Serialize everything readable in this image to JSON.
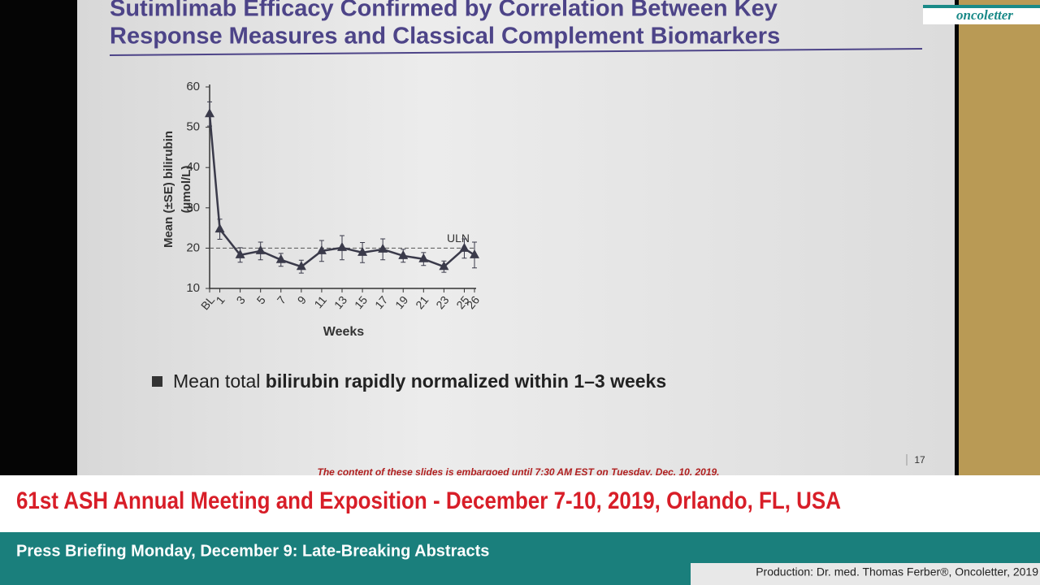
{
  "slide": {
    "title_line1": "Sutimlimab Efficacy Confirmed by Correlation Between Key",
    "title_line2": "Response Measures and Classical Complement Biomarkers",
    "bullet_regular": "Mean total",
    "bullet_bold": "bilirubin rapidly normalized within 1–3 weeks",
    "embargo": "The content of these slides is embargoed until 7:30 AM EST on Tuesday, Dec. 10, 2019.",
    "page_number": "17"
  },
  "logo": "oncoletter",
  "chart_data": {
    "type": "line",
    "y_label_line1": "Mean (±SE) bilirubin",
    "y_label_line2": "(µmol/L)",
    "x_label": "Weeks",
    "x": [
      0,
      1,
      3,
      5,
      7,
      9,
      11,
      13,
      15,
      17,
      19,
      21,
      23,
      25,
      26
    ],
    "values": [
      53.3,
      24.7,
      18.3,
      19.3,
      17.1,
      15.4,
      19.3,
      20.1,
      18.9,
      19.7,
      18.1,
      17.3,
      15.4,
      19.9,
      18.3
    ],
    "errors": [
      3,
      2.5,
      1.8,
      2.2,
      1.6,
      1.6,
      2.6,
      3,
      2.5,
      2.6,
      1.6,
      1.6,
      1.4,
      2.4,
      3.2
    ],
    "color": "#3a3a4a",
    "xlim": [
      0,
      26
    ],
    "xticks": [
      {
        "value": 0,
        "label": "BL"
      },
      1,
      3,
      5,
      7,
      9,
      11,
      13,
      15,
      17,
      19,
      21,
      23,
      25,
      26
    ],
    "ylim": [
      10,
      60
    ],
    "yticks": [
      10,
      20,
      30,
      40,
      50,
      60
    ],
    "reference_line": {
      "value": 20,
      "label": "ULN"
    }
  },
  "banner": {
    "meeting": "61st ASH Annual Meeting and Exposition - December 7-10, 2019, Orlando, FL, USA",
    "briefing": "Press Briefing Monday, December 9: Late-Breaking Abstracts",
    "production": "Production: Dr. med. Thomas Ferber®, Oncoletter, 2019"
  }
}
